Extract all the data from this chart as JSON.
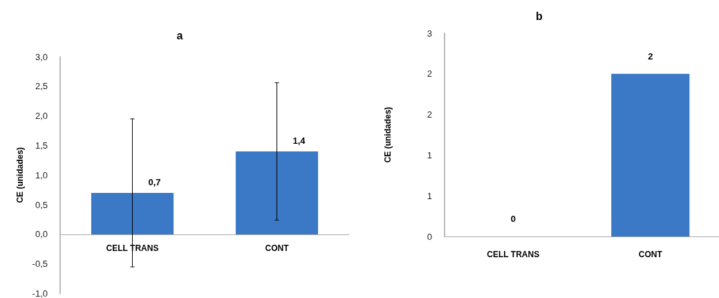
{
  "chart_data": [
    {
      "type": "bar",
      "title": "a",
      "ylabel": "CE (unidades)",
      "categories": [
        "CELL TRANS",
        "CONT"
      ],
      "values": [
        0.7,
        1.4
      ],
      "errors": [
        1.25,
        1.16
      ],
      "value_labels": [
        "0,7",
        "1,4"
      ],
      "color": "#3b78c6",
      "ylim": [
        -1.0,
        3.0
      ],
      "yticks": [
        {
          "value": -1.0,
          "label": "-1,0"
        },
        {
          "value": -0.5,
          "label": "-0,5"
        },
        {
          "value": 0,
          "label": "0,0"
        },
        {
          "value": 0.5,
          "label": "0,5"
        },
        {
          "value": 1.0,
          "label": "1,0"
        },
        {
          "value": 1.5,
          "label": "1,5"
        },
        {
          "value": 2.0,
          "label": "2,0"
        },
        {
          "value": 2.5,
          "label": "2,5"
        },
        {
          "value": 3.0,
          "label": "3,0"
        }
      ],
      "grid": false
    },
    {
      "type": "bar",
      "title": "b",
      "ylabel": "CE (unidades)",
      "categories": [
        "CELL TRANS",
        "CONT"
      ],
      "values": [
        0,
        2.4
      ],
      "value_labels": [
        "0",
        "2"
      ],
      "color": "#3b78c6",
      "ylim": [
        0,
        3
      ],
      "yticks": [
        0,
        {
          "value": 0.6,
          "label": "1"
        },
        {
          "value": 1.2,
          "label": "1"
        },
        {
          "value": 1.8,
          "label": "2"
        },
        {
          "value": 2.4,
          "label": "2"
        },
        3
      ],
      "grid": false
    }
  ]
}
